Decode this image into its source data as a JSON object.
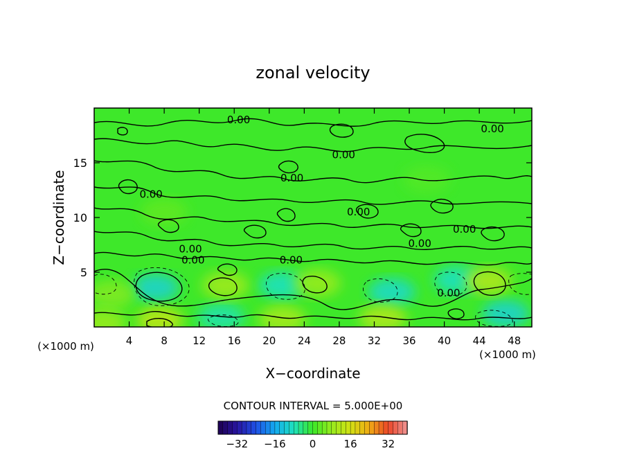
{
  "chart_data": {
    "type": "heatmap",
    "title": "zonal velocity",
    "xlabel": "X−coordinate",
    "ylabel": "Z−coordinate",
    "x_unit_left": "(×1000 m)",
    "x_unit_right": "(×1000 m)",
    "xlim": [
      0,
      50
    ],
    "ylim": [
      0,
      20
    ],
    "x_ticks": [
      4,
      8,
      12,
      16,
      20,
      24,
      28,
      32,
      36,
      40,
      44,
      48
    ],
    "y_ticks": [
      5,
      10,
      15
    ],
    "contour_interval_label": "CONTOUR INTERVAL = 5.000E+00",
    "contour_labels": [
      {
        "text": "0.00",
        "x": 16.5,
        "y": 18.6
      },
      {
        "text": "0.00",
        "x": 45.5,
        "y": 17.8
      },
      {
        "text": "0.00",
        "x": 28.5,
        "y": 15.4
      },
      {
        "text": "0.00",
        "x": 22.6,
        "y": 13.3
      },
      {
        "text": "0.00",
        "x": 6.5,
        "y": 11.8
      },
      {
        "text": "0.00",
        "x": 30.2,
        "y": 10.2
      },
      {
        "text": "0.00",
        "x": 42.3,
        "y": 8.6
      },
      {
        "text": "0.00",
        "x": 37.2,
        "y": 7.3
      },
      {
        "text": "0.00",
        "x": 11.0,
        "y": 6.8
      },
      {
        "text": "0.00",
        "x": 11.3,
        "y": 5.8
      },
      {
        "text": "0.00",
        "x": 22.5,
        "y": 5.8
      },
      {
        "text": "0.00",
        "x": 40.5,
        "y": 2.8
      }
    ],
    "blobs": [
      {
        "x": 7,
        "y": 3.6,
        "value": -10
      },
      {
        "x": 21.5,
        "y": 3.8,
        "value": -8
      },
      {
        "x": 34,
        "y": 3.2,
        "value": -9
      },
      {
        "x": 41.5,
        "y": 4.3,
        "value": -8
      },
      {
        "x": 47,
        "y": 1.2,
        "value": -10
      },
      {
        "x": 14.5,
        "y": 0.9,
        "value": -7
      },
      {
        "x": 15,
        "y": 3.8,
        "value": 9
      },
      {
        "x": 25.5,
        "y": 4.0,
        "value": 8
      },
      {
        "x": 45,
        "y": 4.2,
        "value": 11
      },
      {
        "x": 7.5,
        "y": 0.6,
        "value": 13
      },
      {
        "x": 21.5,
        "y": 0.7,
        "value": 10
      },
      {
        "x": 33,
        "y": 0.8,
        "value": 11
      },
      {
        "x": 2,
        "y": 3.0,
        "value": 6
      },
      {
        "x": 1,
        "y": 0.4,
        "value": 8
      },
      {
        "x": 8,
        "y": 10.5,
        "value": 3
      },
      {
        "x": 38,
        "y": 13.5,
        "value": 2
      }
    ],
    "colorbar": {
      "ticks": [
        "−32",
        "−16",
        "0",
        "16",
        "32"
      ],
      "tick_values": [
        -32,
        -16,
        0,
        16,
        32
      ],
      "range": [
        -40,
        40
      ]
    }
  }
}
